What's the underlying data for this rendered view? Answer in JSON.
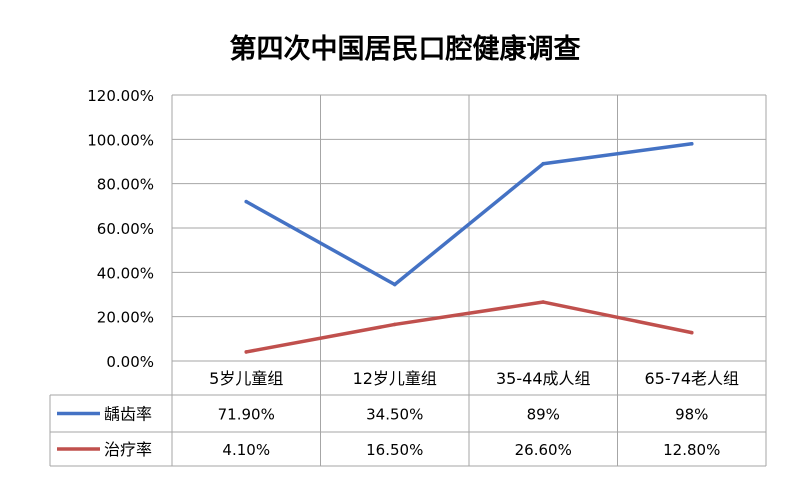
{
  "chart_data": {
    "type": "line",
    "title": "第四次中国居民口腔健康调查",
    "categories": [
      "5岁儿童组",
      "12岁儿童组",
      "35-44成人组",
      "65-74老人组"
    ],
    "ylim": [
      0,
      120
    ],
    "yticks": [
      "0.00%",
      "20.00%",
      "40.00%",
      "60.00%",
      "80.00%",
      "100.00%",
      "120.00%"
    ],
    "grid": true,
    "legend": "data-table",
    "series": [
      {
        "name": "龋齿率",
        "values": [
          71.9,
          34.5,
          89,
          98
        ],
        "labels": [
          "71.90%",
          "34.50%",
          "89%",
          "98%"
        ],
        "color": "#4472c4"
      },
      {
        "name": "治疗率",
        "values": [
          4.1,
          16.5,
          26.6,
          12.8
        ],
        "labels": [
          "4.10%",
          "16.50%",
          "26.60%",
          "12.80%"
        ],
        "color": "#c0504d"
      }
    ]
  }
}
